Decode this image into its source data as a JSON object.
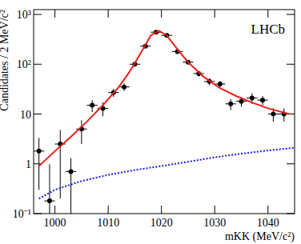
{
  "chart_data": {
    "type": "scatter",
    "annotation": "LHCb",
    "xlabel": "mKK (MeV/c²)",
    "ylabel": "Candidates / 2 MeV/c²",
    "log": "y",
    "xlim": [
      996,
      1045
    ],
    "xticks": [
      1000,
      1010,
      1020,
      1030,
      1040
    ],
    "ylim": [
      0.1,
      1250
    ],
    "yticks": [
      {
        "value": 0.1,
        "label": "10⁻¹"
      },
      1,
      10,
      {
        "value": 100,
        "label": "10²"
      },
      {
        "value": 1000,
        "label": "10³"
      }
    ],
    "series": [
      {
        "type": "scatter",
        "color": "#000000",
        "marker": "circle",
        "x_error": 1,
        "x": [
          997,
          999,
          1001,
          1003,
          1005,
          1007,
          1009,
          1011,
          1013,
          1015,
          1017,
          1019,
          1021,
          1023,
          1025,
          1027,
          1029,
          1031,
          1033,
          1035,
          1037,
          1039,
          1041,
          1043
        ],
        "values": [
          1.8,
          0.18,
          2.5,
          0.7,
          5,
          15,
          13,
          27,
          35,
          100,
          230,
          440,
          380,
          180,
          110,
          65,
          45,
          40,
          16,
          18,
          21,
          19,
          10,
          10
        ],
        "errors": [
          1.5,
          0.8,
          2.3,
          0.6,
          2.5,
          4,
          4,
          5,
          6,
          10,
          15,
          21,
          20,
          13,
          10,
          8,
          7,
          6,
          4,
          4,
          5,
          4,
          3,
          3
        ]
      },
      {
        "type": "line",
        "color": "#e8201c",
        "line_style": "solid",
        "x": [
          997,
          1000,
          1003,
          1006,
          1009,
          1012,
          1014,
          1016,
          1018,
          1019.5,
          1021,
          1023,
          1025,
          1028,
          1031,
          1034,
          1037,
          1040,
          1044
        ],
        "values": [
          0.9,
          1.8,
          3.5,
          7,
          15,
          35,
          70,
          160,
          380,
          470,
          380,
          200,
          110,
          55,
          33,
          23,
          17,
          13,
          10
        ]
      },
      {
        "type": "line",
        "color": "#1a1ae0",
        "line_style": "dotted",
        "x": [
          997,
          1000,
          1005,
          1010,
          1015,
          1020,
          1025,
          1030,
          1035,
          1040,
          1045
        ],
        "values": [
          0.2,
          0.3,
          0.45,
          0.6,
          0.75,
          0.9,
          1.1,
          1.35,
          1.6,
          1.85,
          2.1
        ]
      }
    ]
  }
}
